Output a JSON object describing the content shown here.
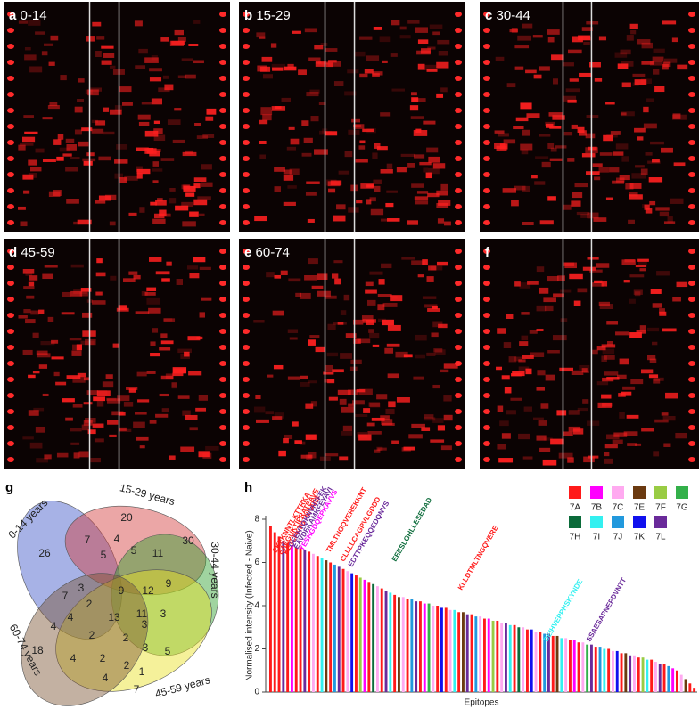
{
  "panels": [
    {
      "letter": "a",
      "label": "0-14"
    },
    {
      "letter": "b",
      "label": "15-29"
    },
    {
      "letter": "c",
      "label": "30-44"
    },
    {
      "letter": "d",
      "label": "45-59"
    },
    {
      "letter": "e",
      "label": "60-74"
    },
    {
      "letter": "f"
    }
  ],
  "venn": {
    "letter": "g",
    "sets": [
      "0-14 years",
      "15-29 years",
      "30-44 years",
      "45-59 years",
      "60-74 years"
    ],
    "regions": [
      26,
      7,
      20,
      4,
      5,
      5,
      11,
      30,
      9,
      12,
      9,
      3,
      2,
      13,
      11,
      3,
      7,
      4,
      4,
      2,
      2,
      3,
      5,
      18,
      4,
      2,
      1,
      3,
      7,
      2,
      4
    ]
  },
  "chart_data": {
    "type": "bar",
    "letter": "h",
    "ylabel": "Normalised intensity (Infected - Naive)",
    "xlabel": "Epitopes",
    "ylim": [
      0,
      8
    ],
    "yticks": [
      0,
      2,
      4,
      6,
      8
    ],
    "legend": [
      {
        "name": "7A",
        "color": "#ff1a1a"
      },
      {
        "name": "7B",
        "color": "#ff00ff"
      },
      {
        "name": "7C",
        "color": "#ffaaf0"
      },
      {
        "name": "7E",
        "color": "#6b3a10"
      },
      {
        "name": "7F",
        "color": "#99cc44"
      },
      {
        "name": "7G",
        "color": "#33b04a"
      },
      {
        "name": "7H",
        "color": "#0b6b3a"
      },
      {
        "name": "7I",
        "color": "#33f0f0"
      },
      {
        "name": "7J",
        "color": "#2299dd"
      },
      {
        "name": "7K",
        "color": "#1010ee"
      },
      {
        "name": "7L",
        "color": "#6a2a9a"
      }
    ],
    "values": [
      7.7,
      7.4,
      7.2,
      7.0,
      6.9,
      6.8,
      6.7,
      6.7,
      6.6,
      6.5,
      6.4,
      6.3,
      6.2,
      6.1,
      6.0,
      5.9,
      5.8,
      5.7,
      5.6,
      5.5,
      5.4,
      5.3,
      5.2,
      5.1,
      5.0,
      4.9,
      4.8,
      4.7,
      4.6,
      4.5,
      4.4,
      4.4,
      4.3,
      4.3,
      4.2,
      4.2,
      4.1,
      4.1,
      4.0,
      4.0,
      3.9,
      3.9,
      3.8,
      3.8,
      3.7,
      3.7,
      3.6,
      3.6,
      3.5,
      3.5,
      3.4,
      3.4,
      3.3,
      3.3,
      3.2,
      3.2,
      3.1,
      3.1,
      3.0,
      3.0,
      2.9,
      2.9,
      2.8,
      2.8,
      2.7,
      2.7,
      2.6,
      2.6,
      2.5,
      2.5,
      2.4,
      2.4,
      2.3,
      2.3,
      2.2,
      2.2,
      2.1,
      2.1,
      2.0,
      2.0,
      1.9,
      1.9,
      1.8,
      1.8,
      1.7,
      1.7,
      1.6,
      1.6,
      1.5,
      1.5,
      1.4,
      1.3,
      1.3,
      1.2,
      1.1,
      1.0,
      0.8,
      0.6,
      0.4,
      0.2
    ],
    "groups": [
      "7A",
      "7A",
      "7A",
      "7L",
      "7A",
      "7B",
      "7A",
      "7A",
      "7L",
      "7A",
      "7C",
      "7A",
      "7I",
      "7E",
      "7A",
      "7J",
      "7L",
      "7A",
      "7C",
      "7K",
      "7A",
      "7F",
      "7B",
      "7A",
      "7H",
      "7C",
      "7A",
      "7L",
      "7I",
      "7A",
      "7E",
      "7C",
      "7A",
      "7J",
      "7L",
      "7A",
      "7B",
      "7G",
      "7C",
      "7A",
      "7K",
      "7A",
      "7C",
      "7I",
      "7A",
      "7E",
      "7L",
      "7A",
      "7J",
      "7C",
      "7A",
      "7B",
      "7F",
      "7A",
      "7C",
      "7L",
      "7I",
      "7A",
      "7H",
      "7C",
      "7A",
      "7K",
      "7C",
      "7A",
      "7J",
      "7L",
      "7A",
      "7E",
      "7I",
      "7C",
      "7A",
      "7B",
      "7A",
      "7C",
      "7G",
      "7L",
      "7A",
      "7J",
      "7I",
      "7A",
      "7C",
      "7K",
      "7A",
      "7E",
      "7L",
      "7C",
      "7A",
      "7F",
      "7I",
      "7A",
      "7C",
      "7L",
      "7A",
      "7J",
      "7B",
      "7A",
      "7C",
      "7E",
      "7A",
      "7A"
    ],
    "annotations": [
      {
        "text": "EKEKNNTLKTTRKA",
        "color": "#ff1a1a"
      },
      {
        "text": "EAEGNKTIPRATEAVE",
        "color": "#ff1a1a"
      },
      {
        "text": "KETLFKTGTNNAIIS",
        "color": "#ff1a1a"
      },
      {
        "text": "QEEHTQKNVHTFEK",
        "color": "#6a2a9a"
      },
      {
        "text": "EAVDEKAMKFEYAVI",
        "color": "#6a2a9a"
      },
      {
        "text": "YESHGDQEPKAVVS",
        "color": "#ff00ff"
      },
      {
        "text": "TMLTNGQVEREKKNT",
        "color": "#ff1a1a"
      },
      {
        "text": "CLLLLCAGPVLGDDD",
        "color": "#ff1a1a"
      },
      {
        "text": "EDTTPKEQQEDQNVS",
        "color": "#6a2a9a"
      },
      {
        "text": "EEESLGHLLESEDAD",
        "color": "#0b6b3a"
      },
      {
        "text": "KLLDTMLTNGQVERE",
        "color": "#ff1a1a"
      },
      {
        "text": "DEIHVEPPHSKYNDE",
        "color": "#33f0f0"
      },
      {
        "text": "SSAESAPNEPDVNTT",
        "color": "#6a2a9a"
      }
    ]
  }
}
